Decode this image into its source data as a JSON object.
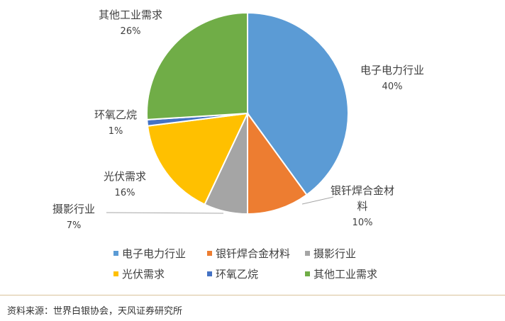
{
  "chart_data": {
    "type": "pie",
    "title": "",
    "slices": [
      {
        "label": "电子电力行业",
        "label_lines": [
          "电子电力行业"
        ],
        "value": 40,
        "pct_label": "40%",
        "color": "#5b9bd5"
      },
      {
        "label": "银钎焊合金材料",
        "label_lines": [
          "银钎焊合金材",
          "料"
        ],
        "value": 10,
        "pct_label": "10%",
        "color": "#ed7d31"
      },
      {
        "label": "摄影行业",
        "label_lines": [
          "摄影行业"
        ],
        "value": 7,
        "pct_label": "7%",
        "color": "#a5a5a5"
      },
      {
        "label": "光伏需求",
        "label_lines": [
          "光伏需求"
        ],
        "value": 16,
        "pct_label": "16%",
        "color": "#ffc000"
      },
      {
        "label": "环氧乙烷",
        "label_lines": [
          "环氧乙烷"
        ],
        "value": 1,
        "pct_label": "1%",
        "color": "#4472c4"
      },
      {
        "label": "其他工业需求",
        "label_lines": [
          "其他工业需求"
        ],
        "value": 26,
        "pct_label": "26%",
        "color": "#70ad47"
      }
    ],
    "start_angle": "12 o'clock",
    "direction": "clockwise",
    "legend_position": "bottom"
  },
  "source": "资料来源：世界白银协会，天风证券研究所"
}
